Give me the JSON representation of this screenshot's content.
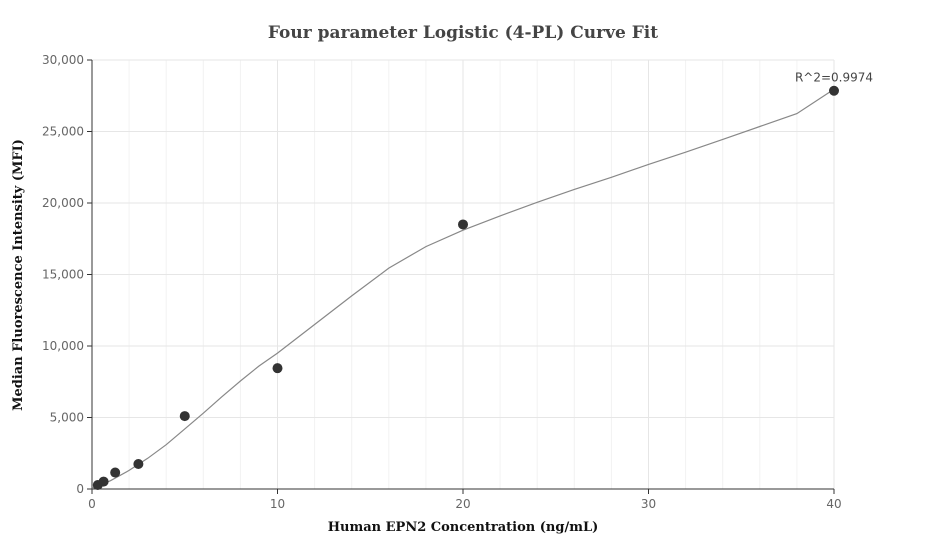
{
  "chart_data": {
    "type": "scatter",
    "title": "Four parameter Logistic (4-PL) Curve Fit",
    "xlabel": "Human EPN2 Concentration (ng/mL)",
    "ylabel": "Median Fluorescence Intensity (MFI)",
    "xlim": [
      0,
      40
    ],
    "ylim": [
      0,
      30000
    ],
    "x_ticks": [
      0,
      10,
      20,
      30,
      40
    ],
    "y_ticks": [
      0,
      5000,
      10000,
      15000,
      20000,
      25000,
      30000
    ],
    "x_tick_labels": [
      "0",
      "10",
      "20",
      "30",
      "40"
    ],
    "y_tick_labels": [
      "0",
      "5,000",
      "10,000",
      "15,000",
      "20,000",
      "25,000",
      "30,000"
    ],
    "grid": true,
    "series": [
      {
        "type": "scatter",
        "x": [
          0.3125,
          0.625,
          1.25,
          2.5,
          5,
          10,
          20,
          40
        ],
        "y": [
          280,
          520,
          1150,
          1750,
          5100,
          8450,
          18500,
          27850
        ]
      },
      {
        "type": "line",
        "x": [
          0,
          1,
          2,
          3,
          4,
          5,
          6,
          7,
          8,
          9,
          10,
          12,
          14,
          16,
          18,
          20,
          22,
          24,
          26,
          28,
          30,
          32,
          34,
          36,
          38,
          40
        ],
        "y": [
          50,
          580,
          1300,
          2150,
          3100,
          4200,
          5300,
          6450,
          7550,
          8600,
          9500,
          11500,
          13500,
          15450,
          16950,
          18100,
          19100,
          20050,
          20950,
          21800,
          22700,
          23550,
          24450,
          25350,
          26250,
          27950
        ]
      }
    ],
    "annotations": [
      {
        "text": "R^2=0.9974",
        "x": 40,
        "y": 27850
      }
    ],
    "colors": {
      "point": "#333333",
      "curve": "#888888",
      "grid": "#e6e6e6",
      "axis": "#333333"
    }
  }
}
